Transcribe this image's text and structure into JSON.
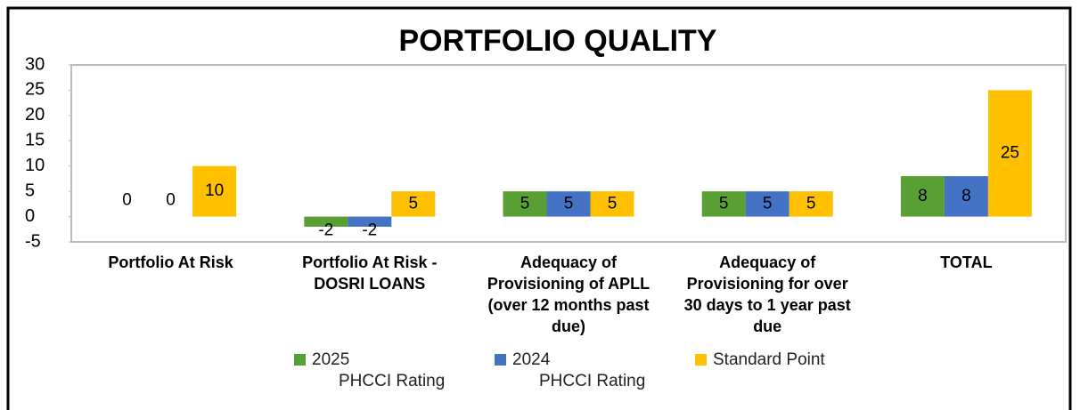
{
  "chart_data": {
    "type": "bar",
    "title": "PORTFOLIO QUALITY",
    "categories": [
      "Portfolio At Risk",
      "Portfolio At Risk - DOSRI LOANS",
      "Adequacy of Provisioning of APLL (over 12 months past due)",
      "Adequacy of Provisioning for over 30 days to 1 year past due",
      "TOTAL"
    ],
    "series": [
      {
        "name": "2025 PHCCI Rating",
        "color": "#5a9f33",
        "values": [
          0,
          -2,
          5,
          5,
          8
        ]
      },
      {
        "name": "2024 PHCCI Rating",
        "color": "#4472c4",
        "values": [
          0,
          -2,
          5,
          5,
          8
        ]
      },
      {
        "name": "Standard Point",
        "color": "#ffc000",
        "values": [
          10,
          5,
          5,
          5,
          25
        ]
      }
    ],
    "ylim": [
      -5,
      30
    ],
    "yticks": [
      -5,
      0,
      5,
      10,
      15,
      20,
      25,
      30
    ],
    "legend": "bottom"
  }
}
